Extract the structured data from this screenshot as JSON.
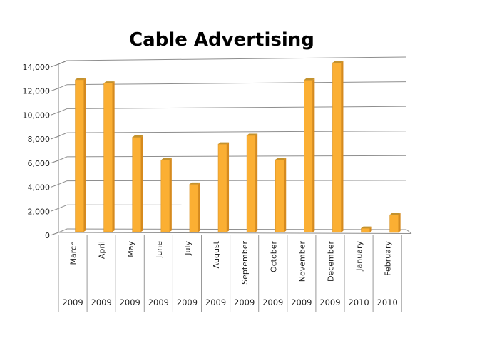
{
  "page": {
    "background": "#ffffff"
  },
  "chart_data": {
    "type": "bar",
    "style": "3d-column",
    "title": "Cable Advertising",
    "categories": [
      "March",
      "April",
      "May",
      "June",
      "July",
      "August",
      "September",
      "October",
      "November",
      "December",
      "January",
      "February"
    ],
    "years": [
      "2009",
      "2009",
      "2009",
      "2009",
      "2009",
      "2009",
      "2009",
      "2009",
      "2009",
      "2009",
      "2010",
      "2010"
    ],
    "values": [
      12400,
      12100,
      7600,
      5700,
      3700,
      7000,
      7700,
      5700,
      12200,
      13600,
      100,
      1200
    ],
    "xlabel": "",
    "ylabel": "",
    "ylim": [
      0,
      14000
    ],
    "ytick_step": 2000,
    "ytick_labels": [
      "0",
      "2,000",
      "4,000",
      "6,000",
      "8,000",
      "10,000",
      "12,000",
      "14,000"
    ],
    "grid": true,
    "legend": "none",
    "colors": {
      "bar_face": "#FBAF33",
      "bar_side": "#D68A1E",
      "bar_top": "#C3922E",
      "bar_outline": "#DA9426",
      "gridline": "#8E8E8E",
      "axis": "#808080",
      "table_line": "#999999",
      "label": "#1F1F1F",
      "title": "#000000"
    }
  }
}
